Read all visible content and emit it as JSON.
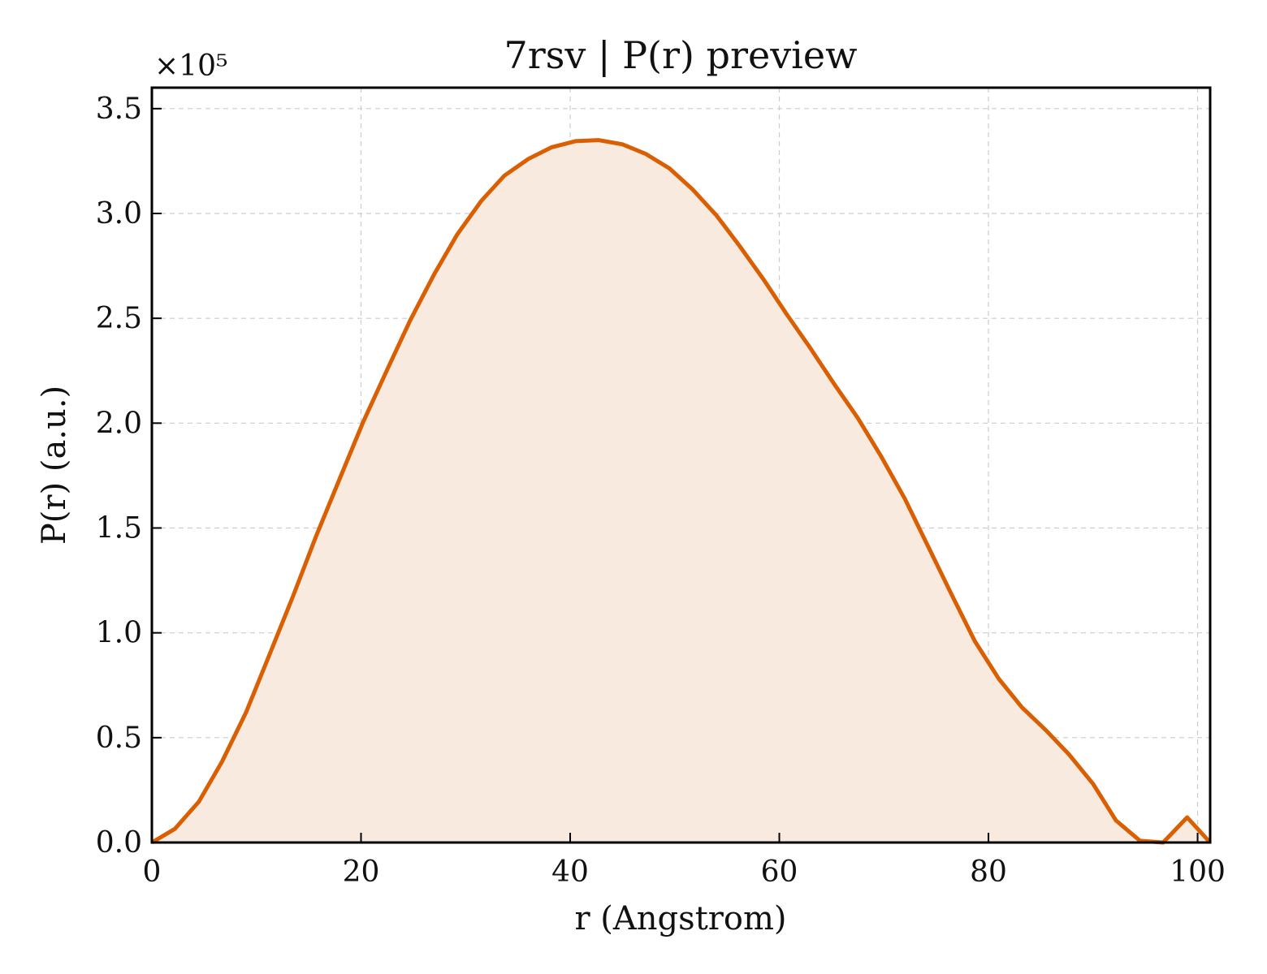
{
  "chart_data": {
    "type": "area",
    "title": "7rsv | P(r) preview",
    "xlabel": "r (Angstrom)",
    "ylabel": "P(r) (a.u.)",
    "y_multiplier_label": "×10⁵",
    "y_multiplier": 100000,
    "xlim": [
      0,
      101.2
    ],
    "ylim": [
      0,
      360000
    ],
    "x_ticks": [
      0,
      20,
      40,
      60,
      80,
      100
    ],
    "x_tick_labels": [
      "0",
      "20",
      "40",
      "60",
      "80",
      "100"
    ],
    "y_ticks": [
      0,
      50000,
      100000,
      150000,
      200000,
      250000,
      300000,
      350000
    ],
    "y_tick_labels": [
      "0.0",
      "0.5",
      "1.0",
      "1.5",
      "2.0",
      "2.5",
      "3.0",
      "3.5"
    ],
    "grid": true,
    "colors": {
      "line": "#d95f02",
      "fill": "#f9eae0"
    },
    "series": [
      {
        "x": [
          0,
          2.2,
          4.5,
          6.7,
          9.0,
          11.2,
          13.5,
          15.7,
          18.0,
          20.2,
          22.5,
          24.7,
          27.0,
          29.2,
          31.5,
          33.7,
          36.0,
          38.2,
          40.5,
          42.7,
          45.0,
          47.2,
          49.5,
          51.7,
          54.0,
          56.2,
          58.5,
          60.7,
          63.0,
          65.2,
          67.5,
          69.7,
          72.0,
          74.2,
          76.5,
          78.7,
          81.0,
          83.2,
          85.5,
          87.7,
          90.0,
          92.2,
          94.5,
          96.7,
          99.0,
          101.2
        ],
        "y": [
          0,
          6500,
          19500,
          38500,
          62000,
          89000,
          117500,
          146000,
          174000,
          200500,
          225500,
          249000,
          271000,
          290000,
          306000,
          318000,
          326000,
          331500,
          334500,
          335000,
          333000,
          328500,
          321500,
          311500,
          299000,
          284500,
          268500,
          252000,
          235500,
          219000,
          202500,
          184500,
          164000,
          141500,
          118000,
          96000,
          78000,
          64500,
          53500,
          42000,
          28000,
          10500,
          800,
          0,
          12000,
          0
        ]
      }
    ]
  }
}
